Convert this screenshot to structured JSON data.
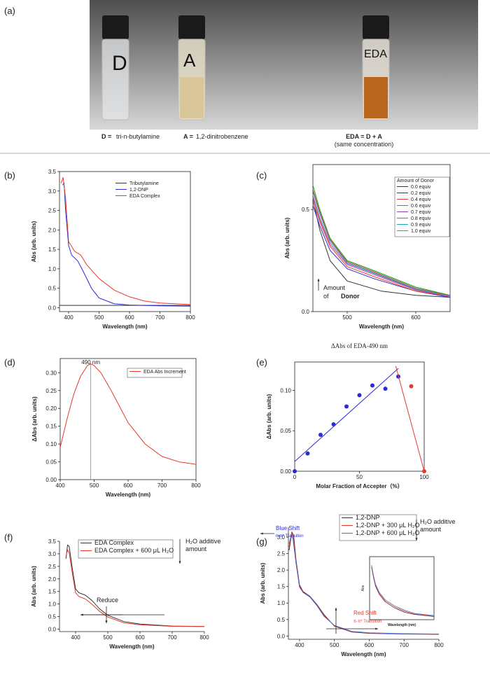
{
  "photo": {
    "panel": "(a)",
    "vial_labels": [
      "D",
      "A",
      "EDA"
    ],
    "d_key": "D =",
    "d_text": "tri-n-butylamine",
    "a_key": "A =",
    "a_text": "1,2-dinitrobenzene",
    "eda_key": "EDA = D + A",
    "eda_note": "(same concentration)"
  },
  "chart_data": [
    {
      "type": "line",
      "panel": "(b)",
      "frame": "box",
      "xlabel": "Wavelength (nm)",
      "ylabel": "Abs (arb. units)",
      "xlim": [
        370,
        800
      ],
      "ylim": [
        -0.1,
        3.5
      ],
      "xticks": [
        400,
        500,
        600,
        700,
        800
      ],
      "yticks": [
        {
          "value": 0,
          "label": "0.0"
        },
        0.5,
        {
          "value": 1,
          "label": "1.0"
        },
        1.5,
        {
          "value": 2,
          "label": "2.0"
        },
        2.5,
        {
          "value": 3,
          "label": "3.0"
        },
        3.5
      ],
      "series": [
        {
          "name": "Tributylamine",
          "color": "#333333",
          "x": [
            370,
            800
          ],
          "values": [
            0.06,
            0.06
          ]
        },
        {
          "name": "1,2-DNP",
          "color": "#2b2bd6",
          "x": [
            380,
            385,
            390,
            400,
            410,
            430,
            450,
            475,
            500,
            550,
            600,
            700,
            800
          ],
          "values": [
            3.15,
            3.2,
            2.5,
            1.6,
            1.35,
            1.2,
            0.9,
            0.5,
            0.25,
            0.1,
            0.07,
            0.05,
            0.04
          ]
        },
        {
          "name": "EDA Complex",
          "color": "#e8392b",
          "x": [
            375,
            382,
            390,
            400,
            420,
            440,
            460,
            500,
            550,
            600,
            650,
            700,
            800
          ],
          "values": [
            3.2,
            3.35,
            2.8,
            1.7,
            1.45,
            1.35,
            1.1,
            0.75,
            0.45,
            0.28,
            0.17,
            0.12,
            0.08
          ]
        }
      ]
    },
    {
      "type": "line",
      "panel": "(c)",
      "frame": "box",
      "xlabel": "Wavelength (nm)",
      "ylabel": "Abs (arb. units)",
      "xlim": [
        450,
        650
      ],
      "ylim": [
        0,
        0.72
      ],
      "xticks": [
        500,
        600
      ],
      "yticks": [
        {
          "value": 0,
          "label": "0.0"
        },
        0.5
      ],
      "legend_title": "Amount of Donor",
      "annotations": [
        "Amount",
        "of ",
        "Donor"
      ],
      "series": [
        {
          "name": "0.0 equiv",
          "color": "#333333",
          "x": [
            450,
            460,
            475,
            500,
            550,
            600,
            650
          ],
          "values": [
            0.55,
            0.4,
            0.25,
            0.15,
            0.1,
            0.08,
            0.07
          ]
        },
        {
          "name": "0.2 equiv",
          "color": "#2b2bd6",
          "x": [
            450,
            460,
            475,
            500,
            540,
            600,
            650
          ],
          "values": [
            0.52,
            0.42,
            0.3,
            0.21,
            0.16,
            0.1,
            0.07
          ]
        },
        {
          "name": "0.4 equiv",
          "color": "#e8392b",
          "x": [
            450,
            460,
            475,
            500,
            540,
            600,
            650
          ],
          "values": [
            0.54,
            0.44,
            0.32,
            0.22,
            0.17,
            0.1,
            0.075
          ]
        },
        {
          "name": "0.6 equiv",
          "color": "#2ca02c",
          "x": [
            450,
            460,
            475,
            500,
            540,
            600,
            650
          ],
          "values": [
            0.62,
            0.5,
            0.36,
            0.25,
            0.2,
            0.12,
            0.08
          ]
        },
        {
          "name": "0.7 equiv",
          "color": "#8e44ad",
          "x": [
            450,
            460,
            475,
            500,
            540,
            600,
            650
          ],
          "values": [
            0.59,
            0.48,
            0.35,
            0.24,
            0.19,
            0.11,
            0.078
          ]
        },
        {
          "name": "0.8 equiv",
          "color": "#8a7a2a",
          "x": [
            450,
            460,
            475,
            500,
            540,
            600,
            650
          ],
          "values": [
            0.6,
            0.49,
            0.355,
            0.245,
            0.195,
            0.115,
            0.079
          ]
        },
        {
          "name": "0.9 equiv",
          "color": "#1ca3b8",
          "x": [
            450,
            460,
            475,
            500,
            540,
            600,
            650
          ],
          "values": [
            0.57,
            0.46,
            0.34,
            0.235,
            0.185,
            0.108,
            0.076
          ]
        },
        {
          "name": "1.0 equiv",
          "color": "#d4479f",
          "x": [
            450,
            460,
            475,
            500,
            540,
            600,
            650
          ],
          "values": [
            0.56,
            0.45,
            0.33,
            0.23,
            0.18,
            0.105,
            0.074
          ]
        }
      ]
    },
    {
      "type": "line",
      "panel": "(d)",
      "frame": "box",
      "xlabel": "Wavelength (nm)",
      "ylabel": "ΔAbs (arb. units)",
      "xlim": [
        400,
        800
      ],
      "ylim": [
        0,
        0.34
      ],
      "xticks": [
        400,
        500,
        600,
        700,
        800
      ],
      "yticks": [
        {
          "value": 0,
          "label": "0.00"
        },
        0.05,
        {
          "value": 0.1,
          "label": "0.10"
        },
        0.15,
        {
          "value": 0.2,
          "label": "0.20"
        },
        0.25,
        {
          "value": 0.3,
          "label": "0.30"
        }
      ],
      "vline": {
        "x": 490,
        "label": "490 nm"
      },
      "series": [
        {
          "name": "EDA Abs Increment",
          "color": "#e8392b",
          "x": [
            400,
            420,
            440,
            460,
            480,
            490,
            500,
            520,
            550,
            600,
            650,
            700,
            750,
            800
          ],
          "values": [
            0.09,
            0.17,
            0.24,
            0.29,
            0.32,
            0.325,
            0.32,
            0.3,
            0.25,
            0.16,
            0.1,
            0.065,
            0.05,
            0.043
          ]
        }
      ]
    },
    {
      "type": "scatter",
      "panel": "(e)",
      "frame": "box",
      "title": "ΔAbs of EDA-490 nm",
      "xlabel": "Molar Fraction of Accepter（%）",
      "ylabel": "ΔAbs (arb. units)",
      "xlim": [
        0,
        100
      ],
      "ylim": [
        0,
        0.135
      ],
      "xticks": [
        0,
        50,
        100
      ],
      "yticks": [
        {
          "value": 0,
          "label": "0.00"
        },
        0.05,
        {
          "value": 0.1,
          "label": "0.10"
        }
      ],
      "series": [
        {
          "style": "markers",
          "color": "#2b2bd6",
          "x": [
            0,
            10,
            20,
            30,
            40,
            50,
            60,
            70,
            80
          ],
          "values": [
            0,
            0.022,
            0.045,
            0.058,
            0.08,
            0.094,
            0.106,
            0.102,
            0.117
          ]
        },
        {
          "style": "markers",
          "color": "#e8392b",
          "x": [
            90,
            100
          ],
          "values": [
            0.105,
            0
          ]
        },
        {
          "style": "line",
          "color": "#2b2bd6",
          "x": [
            0,
            80
          ],
          "values": [
            0.012,
            0.127
          ]
        },
        {
          "style": "line",
          "color": "#e8392b",
          "x": [
            78,
            100
          ],
          "values": [
            0.13,
            0
          ]
        }
      ]
    },
    {
      "type": "line",
      "panel": "(f)",
      "frame": "axes",
      "xlabel": "Wavelength (nm)",
      "ylabel": "Abs (arb. units)",
      "xlim": [
        350,
        800
      ],
      "ylim": [
        -0.1,
        3.5
      ],
      "xticks": [
        400,
        500,
        600,
        700,
        800
      ],
      "yticks": [
        {
          "value": 0,
          "label": "0.0"
        },
        0.5,
        {
          "value": 1,
          "label": "1.0"
        },
        1.5,
        {
          "value": 2,
          "label": "2.0"
        },
        2.5,
        {
          "value": 3,
          "label": "3.0"
        },
        3.5
      ],
      "annotations": [
        "H₂O additive",
        "amount",
        "Reduce"
      ],
      "series": [
        {
          "name": "EDA Complex",
          "color": "#333333",
          "x": [
            370,
            375,
            380,
            390,
            400,
            410,
            430,
            450,
            475,
            500,
            550,
            600,
            700,
            800
          ],
          "values": [
            2.8,
            3.35,
            3.3,
            2.4,
            1.6,
            1.45,
            1.35,
            1.15,
            0.8,
            0.55,
            0.3,
            0.2,
            0.12,
            0.1
          ]
        },
        {
          "name": "EDA Complex + 600 μL H₂O",
          "color": "#e8392b",
          "x": [
            370,
            375,
            380,
            390,
            400,
            410,
            430,
            450,
            475,
            500,
            550,
            600,
            700,
            800
          ],
          "values": [
            2.9,
            3.15,
            3.05,
            2.2,
            1.45,
            1.3,
            1.2,
            1.0,
            0.7,
            0.48,
            0.25,
            0.17,
            0.11,
            0.1
          ]
        }
      ]
    },
    {
      "type": "line",
      "panel": "(g)",
      "frame": "axes",
      "xlabel": "Wavelength (nm)",
      "ylabel": "Abs (arb. units)",
      "xlim": [
        368,
        800
      ],
      "ylim": [
        -0.1,
        3.3
      ],
      "xticks": [
        400,
        500,
        600,
        700,
        800
      ],
      "yticks": [
        {
          "value": 0,
          "label": "0.0"
        },
        0.5,
        {
          "value": 1,
          "label": "1.0"
        },
        1.5,
        {
          "value": 2,
          "label": "2.0"
        },
        2.5,
        {
          "value": 3,
          "label": "3.0"
        }
      ],
      "annotations": [
        "Blue Shift",
        "n-π* Transition",
        "Red Shift",
        "π-π* Transition",
        "H₂O additive",
        "amount"
      ],
      "series": [
        {
          "name": "1,2-DNP",
          "color": "#5a1f1f",
          "x": [
            370,
            378,
            383,
            390,
            400,
            410,
            430,
            450,
            470,
            500,
            550,
            600,
            700,
            800
          ],
          "values": [
            2.6,
            3.15,
            3.05,
            2.3,
            1.55,
            1.35,
            1.2,
            0.95,
            0.65,
            0.3,
            0.12,
            0.08,
            0.06,
            0.05
          ]
        },
        {
          "name": "1,2-DNP + 300 μL H₂O",
          "color": "#e8392b",
          "x": [
            370,
            377,
            382,
            390,
            400,
            410,
            430,
            450,
            470,
            500,
            550,
            600,
            700,
            800
          ],
          "values": [
            2.7,
            3.1,
            3.0,
            2.25,
            1.5,
            1.33,
            1.19,
            0.93,
            0.62,
            0.31,
            0.13,
            0.09,
            0.065,
            0.055
          ]
        },
        {
          "name": "1,2-DNP + 600 μL H₂O",
          "color": "#4a6fd8",
          "x": [
            370,
            376,
            381,
            390,
            400,
            410,
            430,
            450,
            470,
            500,
            550,
            600,
            700,
            800
          ],
          "values": [
            2.8,
            3.05,
            2.95,
            2.2,
            1.48,
            1.32,
            1.18,
            0.92,
            0.6,
            0.32,
            0.14,
            0.095,
            0.07,
            0.06
          ]
        }
      ]
    },
    {
      "type": "line",
      "frame": "box",
      "xlabel": "Wavelength (nm)",
      "ylabel": "Abs",
      "xlim": [
        470,
        800
      ],
      "ylim": [
        0,
        0.6
      ],
      "series": [
        {
          "color": "#5a1f1f",
          "x": [
            480,
            490,
            500,
            520,
            550,
            600,
            650,
            700,
            800
          ],
          "values": [
            0.5,
            0.4,
            0.32,
            0.24,
            0.17,
            0.11,
            0.07,
            0.05,
            0.03
          ]
        },
        {
          "color": "#e8392b",
          "x": [
            480,
            490,
            500,
            520,
            550,
            600,
            650,
            700,
            800
          ],
          "values": [
            0.51,
            0.41,
            0.33,
            0.25,
            0.18,
            0.12,
            0.08,
            0.055,
            0.035
          ]
        },
        {
          "color": "#4a6fd8",
          "x": [
            480,
            490,
            500,
            520,
            550,
            600,
            650,
            700,
            800
          ],
          "values": [
            0.52,
            0.42,
            0.34,
            0.26,
            0.19,
            0.13,
            0.09,
            0.06,
            0.04
          ]
        }
      ]
    }
  ]
}
